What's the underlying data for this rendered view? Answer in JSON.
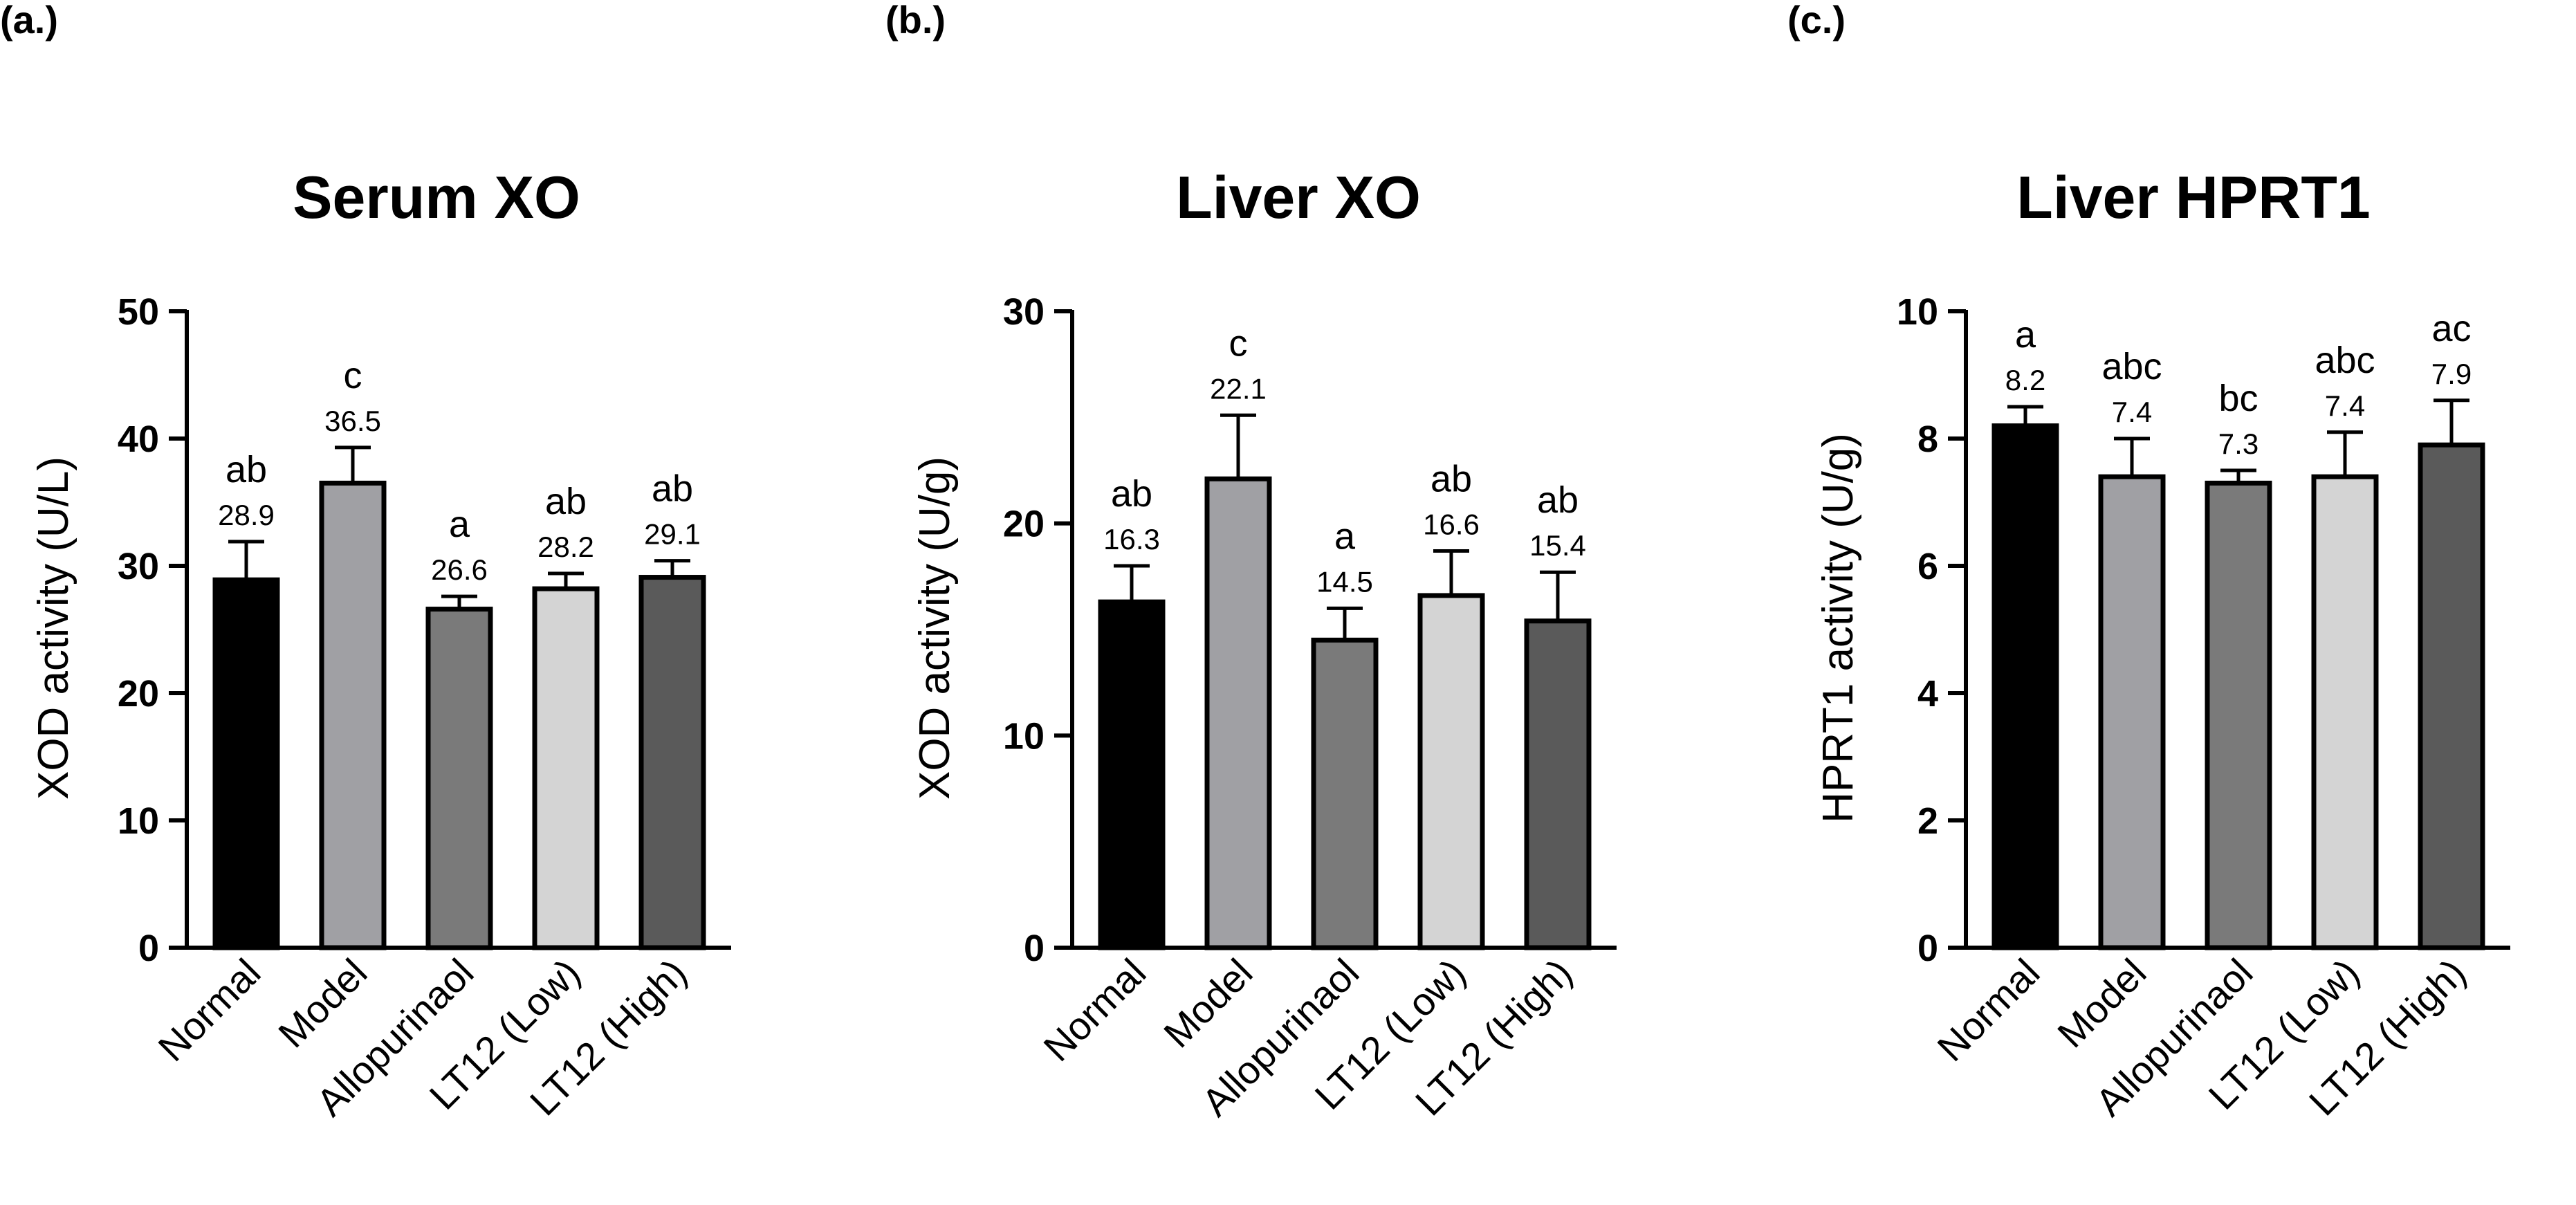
{
  "chart_data": [
    {
      "type": "bar",
      "panel": "(a.)",
      "title": "Serum XO",
      "ylabel": "XOD activity  (U/L)",
      "xlabel": "",
      "ylim": [
        0,
        50
      ],
      "yticks": [
        0,
        10,
        20,
        30,
        40,
        50
      ],
      "grid": false,
      "categories": [
        "Normal",
        "Model",
        "Allopurinaol",
        "LT12 (Low)",
        "LT12 (High)"
      ],
      "values": [
        28.9,
        36.5,
        26.6,
        28.2,
        29.1
      ],
      "value_labels": [
        "28.9",
        "36.5",
        "26.6",
        "28.2",
        "29.1"
      ],
      "errors": [
        3.0,
        2.8,
        1.0,
        1.2,
        1.3
      ],
      "significance": [
        "ab",
        "c",
        "a",
        "ab",
        "ab"
      ],
      "bar_colors": [
        "#000000",
        "#a0a0a4",
        "#7a7a7a",
        "#d4d4d4",
        "#5a5a5a"
      ]
    },
    {
      "type": "bar",
      "panel": "(b.)",
      "title": "Liver XO",
      "ylabel": "XOD activity  (U/g)",
      "xlabel": "",
      "ylim": [
        0,
        30
      ],
      "yticks": [
        0,
        10,
        20,
        30
      ],
      "grid": false,
      "categories": [
        "Normal",
        "Model",
        "Allopurinaol",
        "LT12 (Low)",
        "LT12 (High)"
      ],
      "values": [
        16.3,
        22.1,
        14.5,
        16.6,
        15.4
      ],
      "value_labels": [
        "16.3",
        "22.1",
        "14.5",
        "16.6",
        "15.4"
      ],
      "errors": [
        1.7,
        3.0,
        1.5,
        2.1,
        2.3
      ],
      "significance": [
        "ab",
        "c",
        "a",
        "ab",
        "ab"
      ],
      "bar_colors": [
        "#000000",
        "#a0a0a4",
        "#7a7a7a",
        "#d4d4d4",
        "#5a5a5a"
      ]
    },
    {
      "type": "bar",
      "panel": "(c.)",
      "title": "Liver HPRT1",
      "ylabel": "HPRT1 activity  (U/g)",
      "xlabel": "",
      "ylim": [
        0,
        10
      ],
      "yticks": [
        0,
        2,
        4,
        6,
        8,
        10
      ],
      "grid": false,
      "categories": [
        "Normal",
        "Model",
        "Allopurinaol",
        "LT12 (Low)",
        "LT12 (High)"
      ],
      "values": [
        8.2,
        7.4,
        7.3,
        7.4,
        7.9
      ],
      "value_labels": [
        "8.2",
        "7.4",
        "7.3",
        "7.4",
        "7.9"
      ],
      "errors": [
        0.3,
        0.6,
        0.2,
        0.7,
        0.7
      ],
      "significance": [
        "a",
        "abc",
        "bc",
        "abc",
        "ac"
      ],
      "bar_colors": [
        "#000000",
        "#a0a0a4",
        "#7a7a7a",
        "#d4d4d4",
        "#5a5a5a"
      ]
    }
  ]
}
